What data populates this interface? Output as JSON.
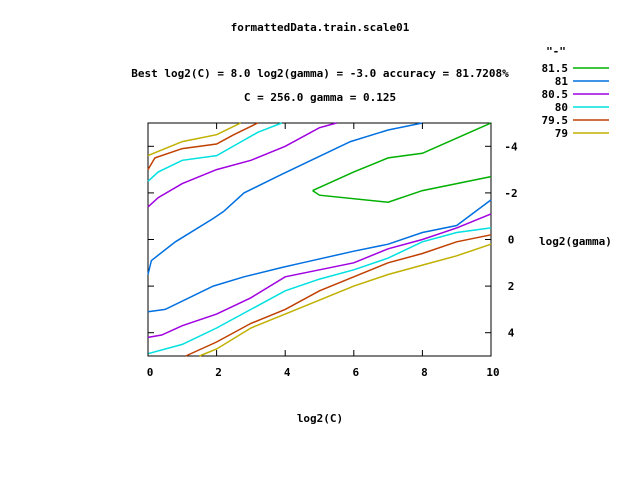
{
  "chart_data": {
    "type": "line",
    "subtype": "contour",
    "title": "formattedData.train.scale01",
    "subtitle_lines": [
      "Best log2(C) = 8.0  log2(gamma) = -3.0  accuracy = 81.7208%",
      "C = 256.0  gamma = 0.125"
    ],
    "xlabel": "log2(C)",
    "ylabel": "log2(gamma)",
    "xlim": [
      0,
      10
    ],
    "ylim": [
      -5,
      5
    ],
    "y_reversed": true,
    "x_ticks": [
      "0",
      "2",
      "4",
      "6",
      "8",
      "10"
    ],
    "y_ticks": [
      "-4",
      "-2",
      "0",
      "2",
      "4"
    ],
    "legend_title": "\"-\"",
    "legend_position": "top-right outside",
    "grid": false,
    "series": [
      {
        "name": "81.5",
        "color": "#00b000",
        "segments": [
          [
            [
              10,
              -5
            ],
            [
              8,
              -3.7
            ],
            [
              7,
              -3.5
            ],
            [
              6,
              -2.9
            ],
            [
              4.8,
              -2.1
            ]
          ],
          [
            [
              4.8,
              -2.1
            ],
            [
              5,
              -1.9
            ],
            [
              7,
              -1.6
            ],
            [
              8,
              -2.1
            ],
            [
              10,
              -2.7
            ]
          ]
        ]
      },
      {
        "name": "81",
        "color": "#0070e0",
        "segments": [
          [
            [
              0,
              1.5
            ],
            [
              0.1,
              0.9
            ],
            [
              0.8,
              0.1
            ],
            [
              1.9,
              -0.9
            ],
            [
              2.2,
              -1.2
            ],
            [
              2.8,
              -2.0
            ],
            [
              3.9,
              -2.8
            ],
            [
              4.9,
              -3.5
            ],
            [
              5.9,
              -4.2
            ],
            [
              7,
              -4.7
            ],
            [
              8,
              -5
            ]
          ],
          [
            [
              0,
              3.1
            ],
            [
              0.5,
              3.0
            ],
            [
              1.9,
              2.0
            ],
            [
              2.8,
              1.6
            ],
            [
              3.9,
              1.2
            ],
            [
              4.5,
              1.0
            ],
            [
              6,
              0.5
            ],
            [
              7,
              0.2
            ],
            [
              8,
              -0.3
            ],
            [
              9,
              -0.6
            ],
            [
              10,
              -1.7
            ]
          ]
        ]
      },
      {
        "name": "80.5",
        "color": "#a000e0",
        "segments": [
          [
            [
              0,
              -1.4
            ],
            [
              0.3,
              -1.8
            ],
            [
              1,
              -2.4
            ],
            [
              2,
              -3.0
            ],
            [
              3,
              -3.4
            ],
            [
              4,
              -4.0
            ],
            [
              5,
              -4.8
            ],
            [
              5.5,
              -5
            ]
          ],
          [
            [
              0,
              4.2
            ],
            [
              0.4,
              4.1
            ],
            [
              1,
              3.7
            ],
            [
              2,
              3.2
            ],
            [
              3,
              2.5
            ],
            [
              4,
              1.6
            ],
            [
              5,
              1.3
            ],
            [
              6,
              1.0
            ],
            [
              7,
              0.4
            ],
            [
              8,
              0
            ],
            [
              9,
              -0.5
            ],
            [
              10,
              -1.1
            ]
          ]
        ]
      },
      {
        "name": "80",
        "color": "#00e0e0",
        "segments": [
          [
            [
              0,
              -2.5
            ],
            [
              0.3,
              -2.9
            ],
            [
              1,
              -3.4
            ],
            [
              2,
              -3.6
            ],
            [
              2.6,
              -4.1
            ],
            [
              3.2,
              -4.6
            ],
            [
              3.9,
              -5
            ]
          ],
          [
            [
              0,
              4.9
            ],
            [
              1,
              4.5
            ],
            [
              2,
              3.8
            ],
            [
              3,
              3.0
            ],
            [
              4,
              2.2
            ],
            [
              5,
              1.7
            ],
            [
              6,
              1.3
            ],
            [
              7,
              0.8
            ],
            [
              8,
              0.1
            ],
            [
              9,
              -0.3
            ],
            [
              10,
              -0.5
            ]
          ]
        ]
      },
      {
        "name": "79.5",
        "color": "#c04000",
        "segments": [
          [
            [
              0,
              -3.0
            ],
            [
              0.2,
              -3.5
            ],
            [
              1,
              -3.9
            ],
            [
              2,
              -4.1
            ],
            [
              2.5,
              -4.5
            ],
            [
              3.2,
              -5
            ]
          ],
          [
            [
              1.1,
              5
            ],
            [
              2,
              4.4
            ],
            [
              3,
              3.6
            ],
            [
              4,
              3.0
            ],
            [
              5,
              2.2
            ],
            [
              6,
              1.6
            ],
            [
              7,
              1.0
            ],
            [
              8,
              0.6
            ],
            [
              9,
              0.1
            ],
            [
              10,
              -0.2
            ]
          ]
        ]
      },
      {
        "name": "79",
        "color": "#c0b000",
        "segments": [
          [
            [
              0,
              -3.6
            ],
            [
              1,
              -4.2
            ],
            [
              2,
              -4.5
            ],
            [
              2.7,
              -5
            ]
          ],
          [
            [
              1.5,
              5
            ],
            [
              2,
              4.7
            ],
            [
              3,
              3.8
            ],
            [
              4,
              3.2
            ],
            [
              5,
              2.6
            ],
            [
              6,
              2.0
            ],
            [
              7,
              1.5
            ],
            [
              8,
              1.1
            ],
            [
              9,
              0.7
            ],
            [
              10,
              0.2
            ]
          ]
        ]
      }
    ]
  }
}
